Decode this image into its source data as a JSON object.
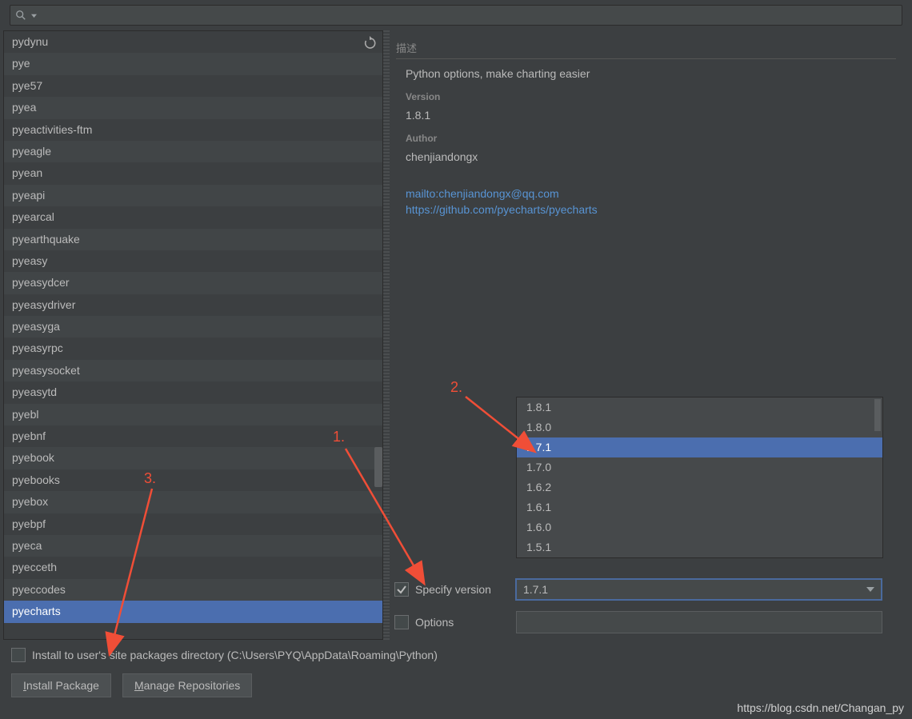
{
  "search": {
    "placeholder": ""
  },
  "packages": [
    "pydynu",
    "pye",
    "pye57",
    "pyea",
    "pyeactivities-ftm",
    "pyeagle",
    "pyean",
    "pyeapi",
    "pyearcal",
    "pyearthquake",
    "pyeasy",
    "pyeasydcer",
    "pyeasydriver",
    "pyeasyga",
    "pyeasyrpc",
    "pyeasysocket",
    "pyeasytd",
    "pyebl",
    "pyebnf",
    "pyebook",
    "pyebooks",
    "pyebox",
    "pyebpf",
    "pyeca",
    "pyecceth",
    "pyeccodes",
    "pyecharts"
  ],
  "selected_package_index": 26,
  "details": {
    "section_label": "描述",
    "description": "Python options, make charting easier",
    "version_label": "Version",
    "version": "1.8.1",
    "author_label": "Author",
    "author": "chenjiandongx",
    "email_link": "mailto:chenjiandongx@qq.com",
    "repo_link": "https://github.com/pyecharts/pyecharts"
  },
  "version_dropdown": {
    "options": [
      "1.8.1",
      "1.8.0",
      "1.7.1",
      "1.7.0",
      "1.6.2",
      "1.6.1",
      "1.6.0",
      "1.5.1"
    ],
    "selected_index": 2
  },
  "controls": {
    "specify_version_label": "Specify version",
    "specify_version_checked": true,
    "specify_version_value": "1.7.1",
    "options_label": "Options",
    "options_checked": false,
    "options_value": ""
  },
  "bottom": {
    "install_dir_label": "Install to user's site packages directory (C:\\Users\\PYQ\\AppData\\Roaming\\Python)",
    "install_dir_checked": false,
    "install_pkg_button": "Install Package",
    "manage_repo_button": "Manage Repositories"
  },
  "annotations": {
    "a1": "1.",
    "a2": "2.",
    "a3": "3."
  },
  "watermark": "https://blog.csdn.net/Changan_py"
}
